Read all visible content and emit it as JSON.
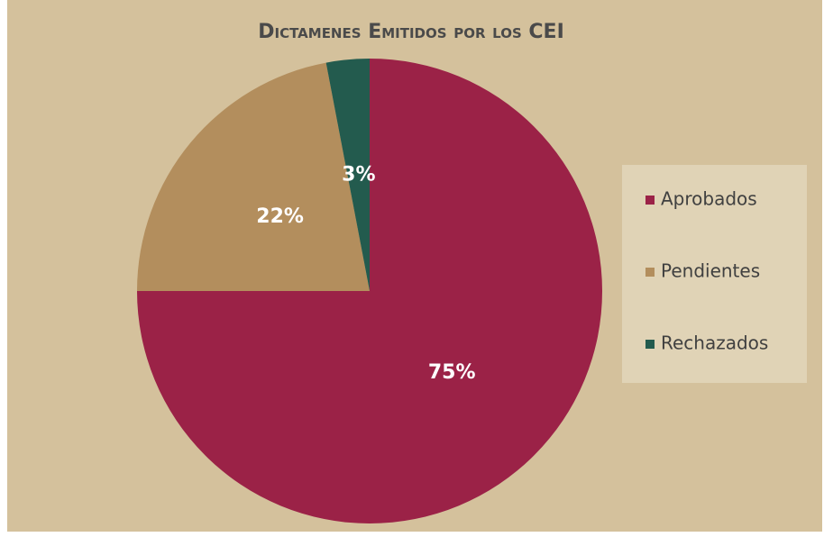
{
  "chart_data": {
    "type": "pie",
    "title": "Dictamenes Emitidos por los CEI",
    "categories": [
      "Aprobados",
      "Pendientes",
      "Rechazados"
    ],
    "values": [
      75,
      22,
      3
    ],
    "value_labels": [
      "75%",
      "22%",
      "3%"
    ],
    "colors": [
      "#9b2247",
      "#b38e5d",
      "#235b4e"
    ],
    "legend": "right"
  }
}
